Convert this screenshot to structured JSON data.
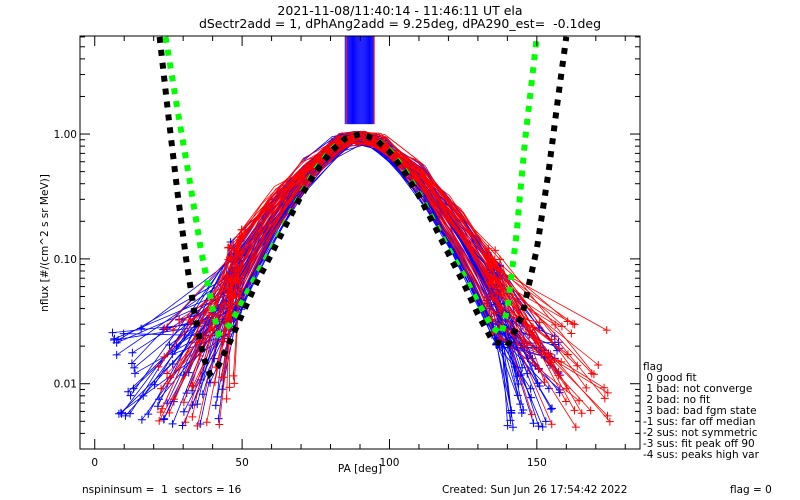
{
  "header": {
    "title_line1": "2021-11-08/11:40:14 - 11:46:11 UT ela",
    "title_line2": "dSectr2add = 1, dPhAng2add = 9.25deg, dPA290_est=  -0.1deg"
  },
  "footer": {
    "left": "nspininsum =  1  sectors = 16",
    "created": "Created: Sun Jun 26 17:54:42 2022",
    "flag": "flag = 0"
  },
  "legend": {
    "title": "flag",
    "items": [
      " 0 good fit",
      " 1 bad: not converge",
      " 2 bad: no fit",
      " 3 bad: bad fgm state",
      "-1 sus: far off median",
      "-2 sus: not symmetric",
      "-3 sus: fit peak off 90",
      "-4 sus: peaks high var"
    ]
  },
  "colors": {
    "series_blue": "#0000ff",
    "series_red": "#ff0000",
    "fit_green": "#00ff00",
    "fit_black": "#000000"
  },
  "chart_data": {
    "type": "line",
    "title": "2021-11-08/11:40:14 - 11:46:11 UT ela",
    "subtitle": "dSectr2add = 1, dPhAng2add = 9.25deg, dPA290_est=  -0.1deg",
    "xlabel": "PA [deg]",
    "ylabel": "nflux [#/(cm^2 s sr MeV)]",
    "xlim": [
      -5,
      185
    ],
    "ylim": [
      0.003,
      6.1
    ],
    "yscale": "log",
    "xticks": [
      0,
      50,
      100,
      150
    ],
    "xtick_labels": [
      "0",
      "50",
      "100",
      "150"
    ],
    "yticks": [
      0.01,
      0.1,
      1.0
    ],
    "ytick_labels": [
      "0.01",
      "0.10",
      "1.00"
    ],
    "grid": false,
    "legend_position": "right-bottom",
    "vertical_band": {
      "x_range": [
        85,
        95
      ],
      "y_range": [
        1.2,
        6.1
      ],
      "color": "#0000ff"
    },
    "fits": [
      {
        "name": "fit-green",
        "color": "#00ff00",
        "style": "dashed-thick",
        "x": [
          24,
          28,
          32,
          36,
          40,
          42,
          46,
          50,
          55,
          60,
          65,
          70,
          75,
          80,
          85,
          90,
          95,
          100,
          105,
          110,
          115,
          120,
          125,
          130,
          135,
          138,
          140,
          143,
          146,
          150
        ],
        "y": [
          6.0,
          1.6,
          0.45,
          0.12,
          0.04,
          0.025,
          0.03,
          0.045,
          0.075,
          0.12,
          0.2,
          0.33,
          0.52,
          0.74,
          0.92,
          1.0,
          0.92,
          0.74,
          0.52,
          0.33,
          0.2,
          0.12,
          0.075,
          0.045,
          0.028,
          0.025,
          0.04,
          0.15,
          0.9,
          6.0
        ]
      },
      {
        "name": "fit-black",
        "color": "#000000",
        "style": "dashed-thick",
        "x": [
          22,
          25,
          28,
          31,
          34,
          37,
          39,
          42,
          46,
          50,
          55,
          60,
          65,
          70,
          75,
          80,
          85,
          90,
          95,
          100,
          105,
          110,
          115,
          120,
          125,
          130,
          135,
          140,
          145,
          150,
          154,
          157,
          160
        ],
        "y": [
          6.0,
          1.4,
          0.35,
          0.1,
          0.035,
          0.016,
          0.012,
          0.014,
          0.022,
          0.036,
          0.065,
          0.11,
          0.19,
          0.32,
          0.5,
          0.72,
          0.92,
          1.0,
          0.92,
          0.72,
          0.5,
          0.32,
          0.19,
          0.11,
          0.065,
          0.036,
          0.022,
          0.02,
          0.035,
          0.12,
          0.5,
          1.8,
          6.0
        ]
      }
    ],
    "series": [
      {
        "name": "sector-spectra-blue",
        "color": "#0000ff",
        "count": 60,
        "peak": 1.0,
        "pa_center": 90,
        "note": "individual spin spectra, low-PA scatter 0.004-0.035"
      },
      {
        "name": "sector-spectra-red",
        "color": "#ff0000",
        "count": 40,
        "peak": 1.0,
        "pa_center": 90,
        "note": "individual spin spectra, high-PA scatter 0.004-0.03"
      }
    ]
  }
}
